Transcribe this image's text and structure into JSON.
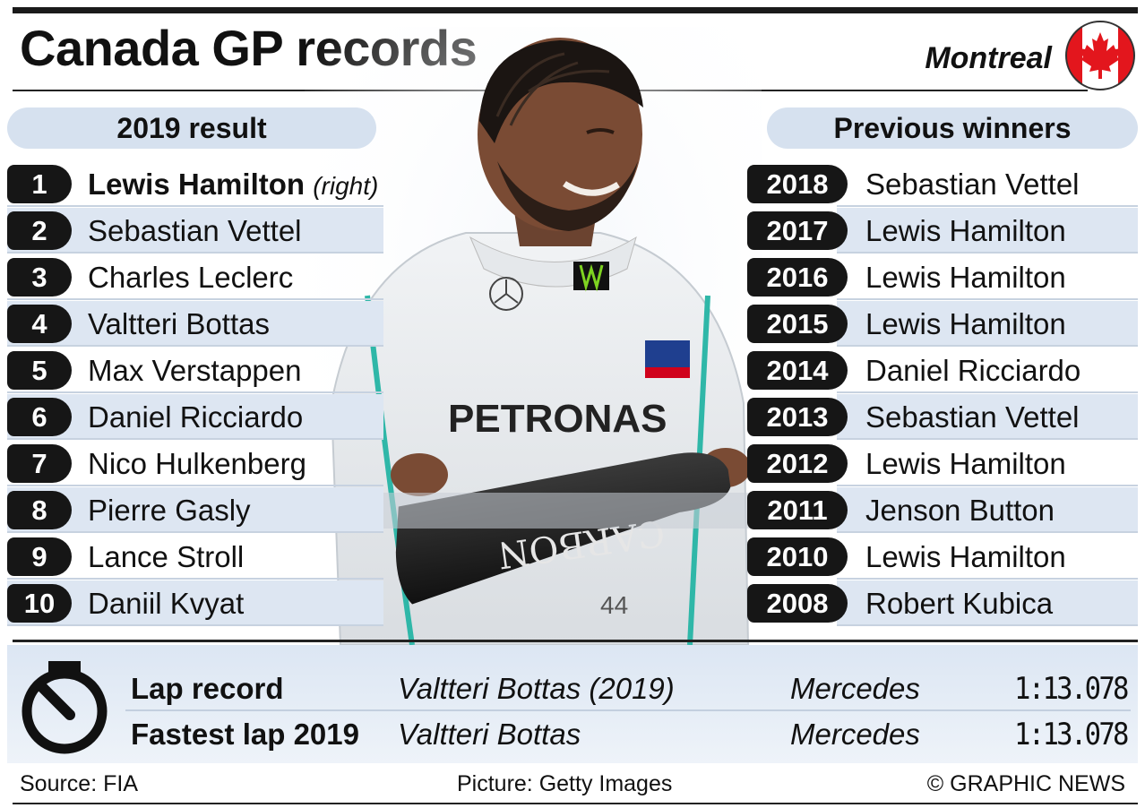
{
  "header": {
    "title": "Canada GP records",
    "location": "Montreal",
    "flag_colors": {
      "red": "#e3161d",
      "white": "#ffffff"
    }
  },
  "result_2019": {
    "heading": "2019 result",
    "rows": [
      {
        "pos": "1",
        "name": "Lewis Hamilton",
        "note": "(right)"
      },
      {
        "pos": "2",
        "name": "Sebastian Vettel"
      },
      {
        "pos": "3",
        "name": "Charles Leclerc"
      },
      {
        "pos": "4",
        "name": "Valtteri Bottas"
      },
      {
        "pos": "5",
        "name": "Max Verstappen"
      },
      {
        "pos": "6",
        "name": "Daniel Ricciardo"
      },
      {
        "pos": "7",
        "name": "Nico Hulkenberg"
      },
      {
        "pos": "8",
        "name": "Pierre Gasly"
      },
      {
        "pos": "9",
        "name": "Lance Stroll"
      },
      {
        "pos": "10",
        "name": "Daniil Kvyat"
      }
    ]
  },
  "previous_winners": {
    "heading": "Previous winners",
    "rows": [
      {
        "year": "2018",
        "name": "Sebastian Vettel"
      },
      {
        "year": "2017",
        "name": "Lewis Hamilton"
      },
      {
        "year": "2016",
        "name": "Lewis Hamilton"
      },
      {
        "year": "2015",
        "name": "Lewis Hamilton"
      },
      {
        "year": "2014",
        "name": "Daniel Ricciardo"
      },
      {
        "year": "2013",
        "name": "Sebastian Vettel"
      },
      {
        "year": "2012",
        "name": "Lewis Hamilton"
      },
      {
        "year": "2011",
        "name": "Jenson Button"
      },
      {
        "year": "2010",
        "name": "Lewis Hamilton"
      },
      {
        "year": "2008",
        "name": "Robert Kubica"
      }
    ]
  },
  "laps": [
    {
      "label": "Lap record",
      "driver": "Valtteri Bottas (2019)",
      "team": "Mercedes",
      "time": "1:13.078"
    },
    {
      "label": "Fastest lap 2019",
      "driver": "Valtteri Bottas",
      "team": "Mercedes",
      "time": "1:13.078"
    }
  ],
  "photo_text": {
    "sponsor_petronas": "PETRONAS",
    "bottle_text": "CARBON",
    "car_number": "44"
  },
  "footer": {
    "source": "Source: FIA",
    "picture": "Picture: Getty Images",
    "copyright": "© GRAPHIC NEWS"
  },
  "icons": {
    "stopwatch": "stopwatch-icon",
    "flag": "canada-flag-icon"
  }
}
